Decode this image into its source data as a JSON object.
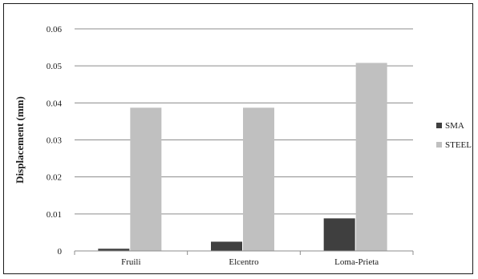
{
  "chart_data": {
    "type": "bar",
    "title": "",
    "xlabel": "",
    "ylabel": "Displacement (mm)",
    "categories": [
      "Fruili",
      "Elcentro",
      "Loma-Prieta"
    ],
    "series": [
      {
        "name": "SMA",
        "values": [
          0.0006,
          0.0025,
          0.0088
        ],
        "color": "#3f3f3f"
      },
      {
        "name": "STEEL",
        "values": [
          0.0387,
          0.0387,
          0.0508
        ],
        "color": "#c0c0c0"
      }
    ],
    "ylim": [
      0,
      0.06
    ],
    "yticks": [
      "0",
      "0.01",
      "0.02",
      "0.03",
      "0.04",
      "0.05",
      "0.06"
    ],
    "grid": true,
    "legend_position": "right"
  }
}
